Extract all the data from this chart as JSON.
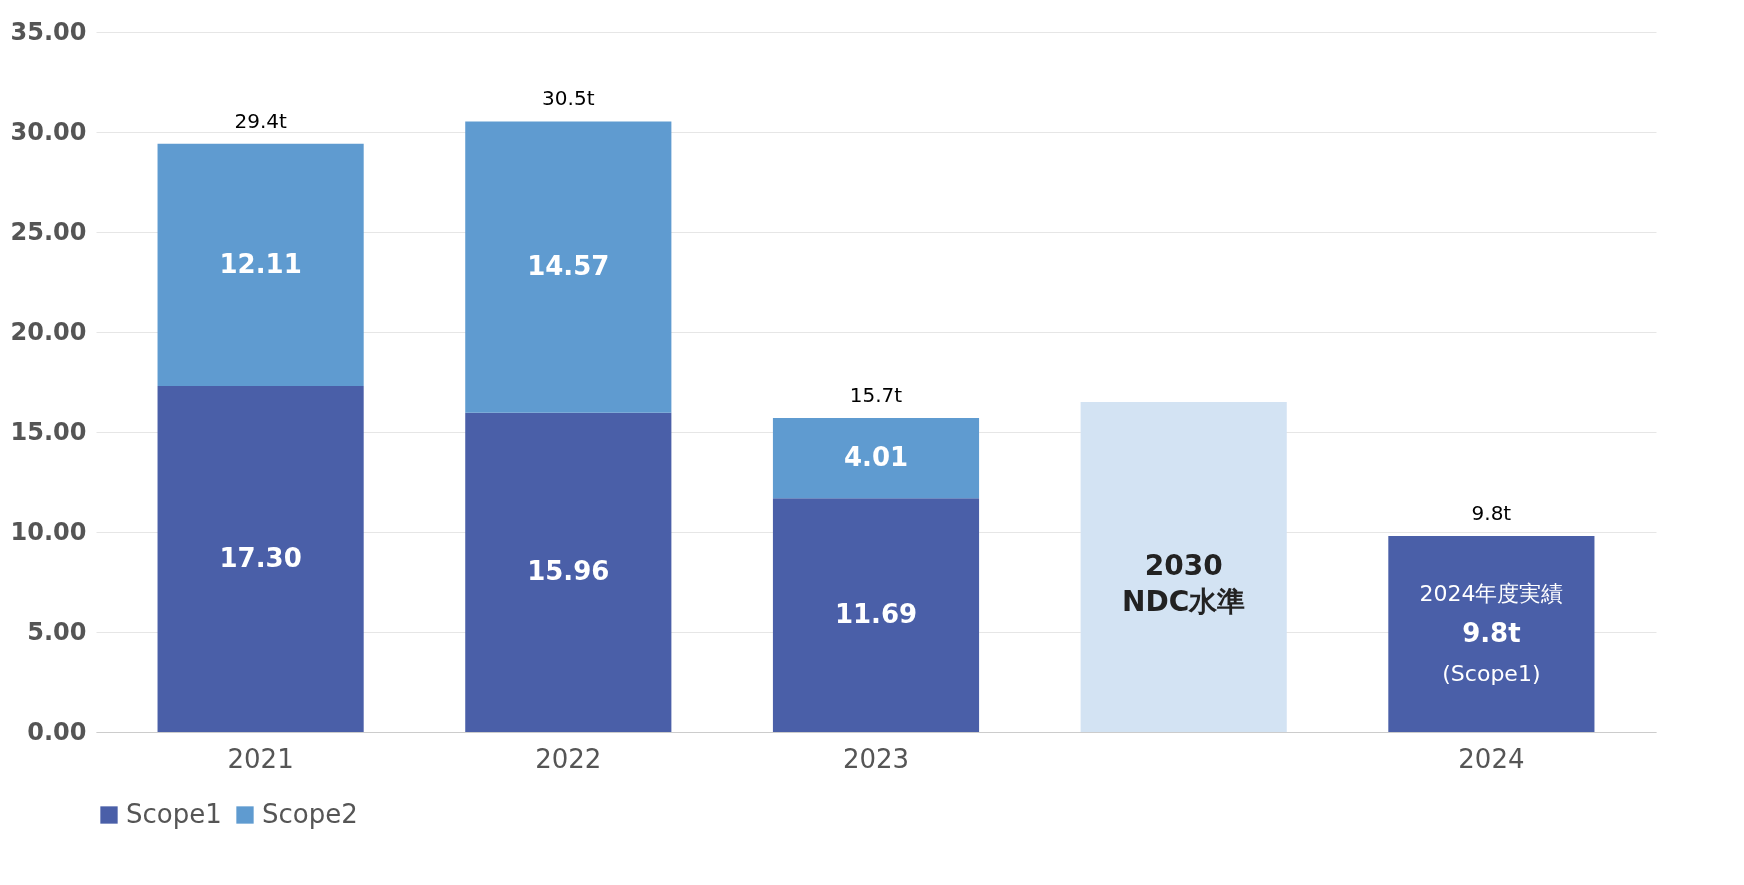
{
  "chart_data": {
    "type": "bar",
    "stacked": true,
    "categories": [
      "2021",
      "2022",
      "2023",
      null,
      "2024"
    ],
    "series": [
      {
        "name": "Scope1",
        "color": "#4a5fa8",
        "values": [
          17.3,
          15.96,
          11.69,
          null,
          9.8
        ],
        "value_labels": [
          "17.30",
          "15.96",
          "11.69",
          null,
          "9.8t"
        ]
      },
      {
        "name": "Scope2",
        "color": "#5f9bd0",
        "values": [
          12.11,
          14.57,
          4.01,
          null,
          null
        ],
        "value_labels": [
          "12.11",
          "14.57",
          "4.01",
          null,
          null
        ]
      },
      {
        "name": "2030 NDC水準",
        "color": "#d3e3f3",
        "values": [
          null,
          null,
          null,
          16.5,
          null
        ]
      }
    ],
    "annotations": [
      {
        "text": "29.4t",
        "x": "2021",
        "y": 29.41
      },
      {
        "text": "30.5t",
        "x": "2022",
        "y": 30.53
      },
      {
        "text": "15.7t",
        "x": "2023",
        "y": 15.7
      },
      {
        "text": "9.8t",
        "x": "2024",
        "y": 9.8
      },
      "2024年度実績",
      "(Scope1)"
    ],
    "ylim": [
      0,
      35
    ],
    "yticks": [
      {
        "value": 0,
        "label": "0.00"
      },
      {
        "value": 5,
        "label": "5.00"
      },
      {
        "value": 10,
        "label": "10.00"
      },
      {
        "value": 15,
        "label": "15.00"
      },
      {
        "value": 20,
        "label": "20.00"
      },
      {
        "value": 25,
        "label": "25.00"
      },
      {
        "value": 30,
        "label": "30.00"
      },
      {
        "value": 35,
        "label": "35.00"
      }
    ],
    "grid": "y",
    "legend": "bottom"
  }
}
